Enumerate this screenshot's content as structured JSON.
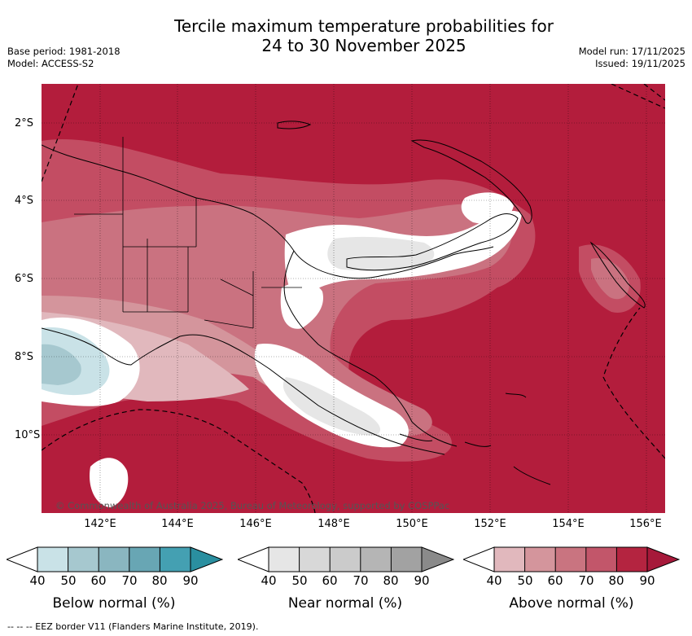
{
  "header": {
    "title_line1": "Tercile maximum temperature probabilities for",
    "title_line2": "24 to 30 November 2025",
    "base_period": "Base period: 1981-2018",
    "model": "Model: ACCESS-S2",
    "model_run": "Model run: 17/11/2025",
    "issued": "Issued: 19/11/2025"
  },
  "map": {
    "region": "Papua New Guinea",
    "lat_ticks": [
      "2°S",
      "4°S",
      "6°S",
      "8°S",
      "10°S"
    ],
    "lon_ticks": [
      "142°E",
      "144°E",
      "146°E",
      "148°E",
      "150°E",
      "152°E",
      "154°E",
      "156°E"
    ],
    "copyright": "© Commonwealth of Australia 2025, Bureau of Meteorology, supported by COSPPac"
  },
  "colorbars": [
    {
      "label": "Below normal (%)",
      "ticks": [
        "40",
        "50",
        "60",
        "70",
        "80",
        "90"
      ],
      "colors": [
        "#c9e2e7",
        "#a6c8cf",
        "#8ab6c0",
        "#68a6b4",
        "#44a0b2",
        "#2a8fa0"
      ]
    },
    {
      "label": "Near normal (%)",
      "ticks": [
        "40",
        "50",
        "60",
        "70",
        "80",
        "90"
      ],
      "colors": [
        "#e6e6e6",
        "#d8d8d8",
        "#cbcbcb",
        "#b5b5b5",
        "#a2a2a2",
        "#8a8a8a"
      ]
    },
    {
      "label": "Above normal (%)",
      "ticks": [
        "40",
        "50",
        "60",
        "70",
        "80",
        "90"
      ],
      "colors": [
        "#e1b8bd",
        "#d4959c",
        "#c97480",
        "#c2566a",
        "#b42440",
        "#a6193a"
      ]
    }
  ],
  "footer": {
    "eez_note": "--  --  -- EEZ border V11 (Flanders Marine Institute, 2019)."
  }
}
